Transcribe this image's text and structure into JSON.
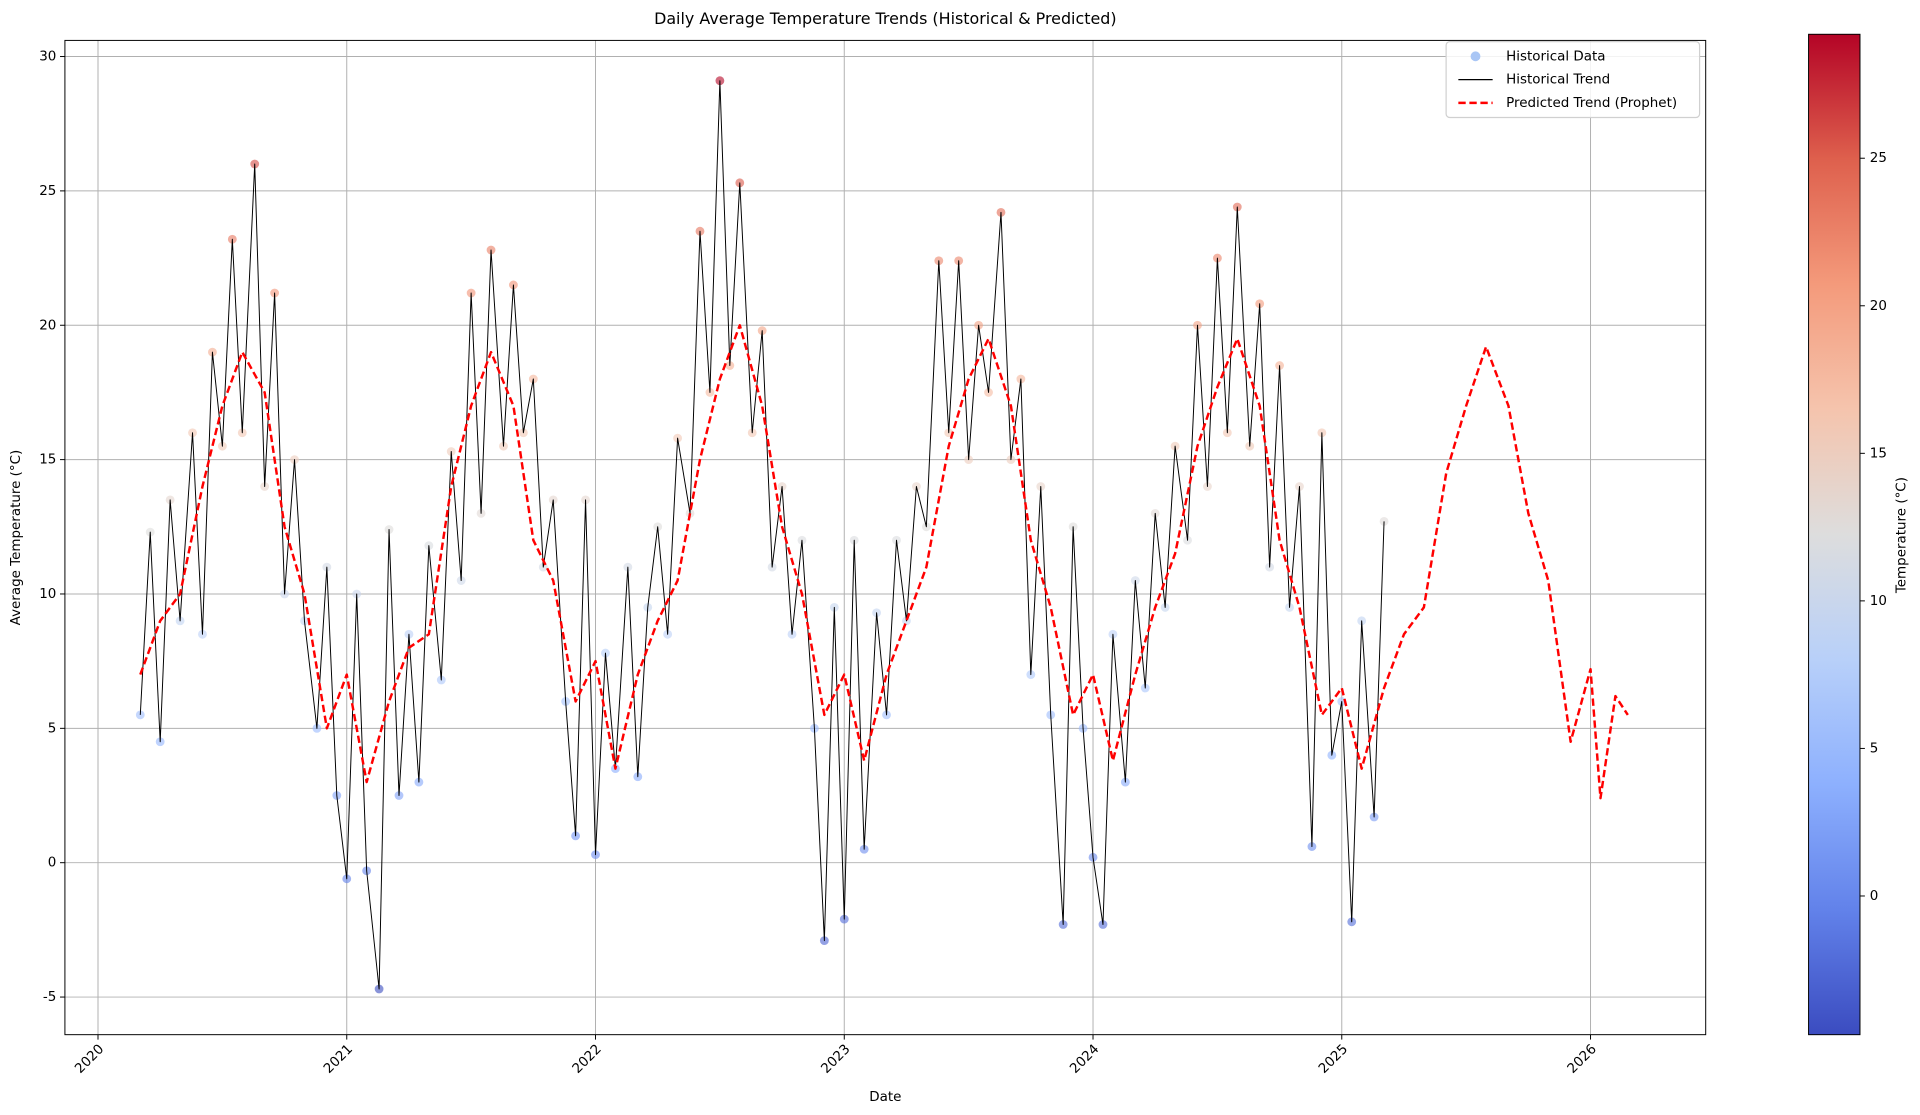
{
  "chart_data": {
    "type": "line",
    "title": "Daily Average Temperature Trends (Historical & Predicted)",
    "x_label": "Date",
    "y_label": "Average Temperature (°C)",
    "xlim": [
      2019.867,
      2026.463
    ],
    "xticks": [
      2020,
      2021,
      2022,
      2023,
      2024,
      2025,
      2026
    ],
    "ylim": [
      -6.4,
      30.6
    ],
    "yticks": [
      -5,
      0,
      5,
      10,
      15,
      20,
      25,
      30
    ],
    "grid": true,
    "legend": "upper right",
    "colorbar": {
      "label": "Temperature (°C)",
      "colormap": "coolwarm",
      "clim": [
        -4.7,
        29.2
      ],
      "ticks": [
        0,
        5,
        10,
        15,
        20,
        25
      ]
    },
    "series": [
      {
        "name": "Historical Data",
        "type": "scatter",
        "color": "#a9c6f5",
        "x": [
          2020.17,
          2020.21,
          2020.25,
          2020.29,
          2020.33,
          2020.38,
          2020.42,
          2020.46,
          2020.5,
          2020.54,
          2020.58,
          2020.63,
          2020.67,
          2020.71,
          2020.75,
          2020.79,
          2020.83,
          2020.88,
          2020.92,
          2020.96,
          2021.0,
          2021.04,
          2021.08,
          2021.13,
          2021.17,
          2021.21,
          2021.25,
          2021.29,
          2021.33,
          2021.38,
          2021.42,
          2021.46,
          2021.5,
          2021.54,
          2021.58,
          2021.63,
          2021.67,
          2021.71,
          2021.75,
          2021.79,
          2021.83,
          2021.88,
          2021.92,
          2021.96,
          2022.0,
          2022.04,
          2022.08,
          2022.13,
          2022.17,
          2022.21,
          2022.25,
          2022.29,
          2022.33,
          2022.38,
          2022.42,
          2022.46,
          2022.5,
          2022.54,
          2022.58,
          2022.63,
          2022.67,
          2022.71,
          2022.75,
          2022.79,
          2022.83,
          2022.88,
          2022.92,
          2022.96,
          2023.0,
          2023.04,
          2023.08,
          2023.13,
          2023.17,
          2023.21,
          2023.25,
          2023.29,
          2023.33,
          2023.38,
          2023.42,
          2023.46,
          2023.5,
          2023.54,
          2023.58,
          2023.63,
          2023.67,
          2023.71,
          2023.75,
          2023.79,
          2023.83,
          2023.88,
          2023.92,
          2023.96,
          2024.0,
          2024.04,
          2024.08,
          2024.13,
          2024.17,
          2024.21,
          2024.25,
          2024.29,
          2024.33,
          2024.38,
          2024.42,
          2024.46,
          2024.5,
          2024.54,
          2024.58,
          2024.63,
          2024.67,
          2024.71,
          2024.75,
          2024.79,
          2024.83,
          2024.88,
          2024.92,
          2024.96,
          2025.0,
          2025.04,
          2025.08,
          2025.13,
          2025.17
        ],
        "values": [
          5.5,
          12.3,
          4.5,
          13.5,
          9,
          16,
          8.5,
          19,
          15.5,
          23.2,
          16,
          26,
          14,
          21.2,
          10,
          15,
          9,
          5,
          11,
          2.5,
          -0.6,
          10,
          -0.3,
          -4.7,
          12.4,
          2.5,
          8.5,
          3,
          11.8,
          6.8,
          15.3,
          10.5,
          21.2,
          13,
          22.8,
          15.5,
          21.5,
          16,
          18,
          11,
          13.5,
          6,
          1,
          13.5,
          0.3,
          7.8,
          3.5,
          11,
          3.2,
          9.5,
          12.5,
          8.5,
          15.8,
          13,
          23.5,
          17.5,
          29.1,
          18.5,
          25.3,
          16,
          19.8,
          11,
          14,
          8.5,
          12,
          5,
          -2.9,
          9.5,
          -2.1,
          12,
          0.5,
          9.3,
          5.5,
          12,
          9,
          14,
          12.5,
          22.4,
          16,
          22.4,
          15,
          20,
          17.5,
          24.2,
          15,
          18,
          7,
          14,
          5.5,
          -2.3,
          12.5,
          5,
          0.2,
          -2.3,
          8.5,
          3,
          10.5,
          6.5,
          13,
          9.5,
          15.5,
          12,
          20,
          14,
          22.5,
          16,
          24.4,
          15.5,
          20.8,
          11,
          18.5,
          9.5,
          14,
          0.6,
          16,
          4,
          6,
          -2.2,
          9,
          1.7,
          12.7
        ]
      },
      {
        "name": "Historical Trend",
        "type": "line",
        "color": "#000000",
        "x": [
          2020.17,
          2020.21,
          2020.25,
          2020.29,
          2020.33,
          2020.38,
          2020.42,
          2020.46,
          2020.5,
          2020.54,
          2020.58,
          2020.63,
          2020.67,
          2020.71,
          2020.75,
          2020.79,
          2020.83,
          2020.88,
          2020.92,
          2020.96,
          2021.0,
          2021.04,
          2021.08,
          2021.13,
          2021.17,
          2021.21,
          2021.25,
          2021.29,
          2021.33,
          2021.38,
          2021.42,
          2021.46,
          2021.5,
          2021.54,
          2021.58,
          2021.63,
          2021.67,
          2021.71,
          2021.75,
          2021.79,
          2021.83,
          2021.88,
          2021.92,
          2021.96,
          2022.0,
          2022.04,
          2022.08,
          2022.13,
          2022.17,
          2022.21,
          2022.25,
          2022.29,
          2022.33,
          2022.38,
          2022.42,
          2022.46,
          2022.5,
          2022.54,
          2022.58,
          2022.63,
          2022.67,
          2022.71,
          2022.75,
          2022.79,
          2022.83,
          2022.88,
          2022.92,
          2022.96,
          2023.0,
          2023.04,
          2023.08,
          2023.13,
          2023.17,
          2023.21,
          2023.25,
          2023.29,
          2023.33,
          2023.38,
          2023.42,
          2023.46,
          2023.5,
          2023.54,
          2023.58,
          2023.63,
          2023.67,
          2023.71,
          2023.75,
          2023.79,
          2023.83,
          2023.88,
          2023.92,
          2023.96,
          2024.0,
          2024.04,
          2024.08,
          2024.13,
          2024.17,
          2024.21,
          2024.25,
          2024.29,
          2024.33,
          2024.38,
          2024.42,
          2024.46,
          2024.5,
          2024.54,
          2024.58,
          2024.63,
          2024.67,
          2024.71,
          2024.75,
          2024.79,
          2024.83,
          2024.88,
          2024.92,
          2024.96,
          2025.0,
          2025.04,
          2025.08,
          2025.13,
          2025.17
        ],
        "values": [
          5.5,
          12.3,
          4.5,
          13.5,
          9,
          16,
          8.5,
          19,
          15.5,
          23.2,
          16,
          26,
          14,
          21.2,
          10,
          15,
          9,
          5,
          11,
          2.5,
          -0.6,
          10,
          -0.3,
          -4.7,
          12.4,
          2.5,
          8.5,
          3,
          11.8,
          6.8,
          15.3,
          10.5,
          21.2,
          13,
          22.8,
          15.5,
          21.5,
          16,
          18,
          11,
          13.5,
          6,
          1,
          13.5,
          0.3,
          7.8,
          3.5,
          11,
          3.2,
          9.5,
          12.5,
          8.5,
          15.8,
          13,
          23.5,
          17.5,
          29.1,
          18.5,
          25.3,
          16,
          19.8,
          11,
          14,
          8.5,
          12,
          5,
          -2.9,
          9.5,
          -2.1,
          12,
          0.5,
          9.3,
          5.5,
          12,
          9,
          14,
          12.5,
          22.4,
          16,
          22.4,
          15,
          20,
          17.5,
          24.2,
          15,
          18,
          7,
          14,
          5.5,
          -2.3,
          12.5,
          5,
          0.2,
          -2.3,
          8.5,
          3,
          10.5,
          6.5,
          13,
          9.5,
          15.5,
          12,
          20,
          14,
          22.5,
          16,
          24.4,
          15.5,
          20.8,
          11,
          18.5,
          9.5,
          14,
          0.6,
          16,
          4,
          6,
          -2.2,
          9,
          1.7,
          12.7
        ]
      },
      {
        "name": "Predicted Trend (Prophet)",
        "type": "line",
        "dashed": true,
        "color": "#ff0000",
        "x": [
          2020.17,
          2020.25,
          2020.33,
          2020.42,
          2020.5,
          2020.58,
          2020.67,
          2020.75,
          2020.83,
          2020.92,
          2021.0,
          2021.08,
          2021.17,
          2021.25,
          2021.33,
          2021.42,
          2021.5,
          2021.58,
          2021.67,
          2021.75,
          2021.83,
          2021.92,
          2022.0,
          2022.08,
          2022.17,
          2022.25,
          2022.33,
          2022.42,
          2022.5,
          2022.58,
          2022.67,
          2022.75,
          2022.83,
          2022.92,
          2023.0,
          2023.08,
          2023.17,
          2023.25,
          2023.33,
          2023.42,
          2023.5,
          2023.58,
          2023.67,
          2023.75,
          2023.83,
          2023.92,
          2024.0,
          2024.08,
          2024.17,
          2024.25,
          2024.33,
          2024.42,
          2024.5,
          2024.58,
          2024.67,
          2024.75,
          2024.83,
          2024.92,
          2025.0,
          2025.08,
          2025.17,
          2025.25,
          2025.33,
          2025.42,
          2025.5,
          2025.58,
          2025.67,
          2025.75,
          2025.83,
          2025.92,
          2026.0,
          2026.04,
          2026.1,
          2026.15
        ],
        "values": [
          7,
          9,
          10,
          14,
          17,
          19,
          17.5,
          12.5,
          10,
          5,
          7,
          3,
          6,
          8,
          8.5,
          14,
          17,
          19,
          17,
          12,
          10.5,
          6,
          7.5,
          3.5,
          7,
          9,
          10.5,
          15,
          18,
          20,
          17,
          12.5,
          10,
          5.5,
          7,
          3.8,
          7,
          9,
          11,
          15.5,
          18,
          19.5,
          17,
          12,
          9.5,
          5.5,
          7,
          3.8,
          7,
          9.5,
          11.5,
          15.5,
          17.7,
          19.5,
          17,
          12,
          9.5,
          5.5,
          6.5,
          3.5,
          6.5,
          8.5,
          9.5,
          14.5,
          17,
          19.2,
          17,
          13,
          10.5,
          4.5,
          7.2,
          2.4,
          6.2,
          5.5
        ]
      }
    ]
  }
}
